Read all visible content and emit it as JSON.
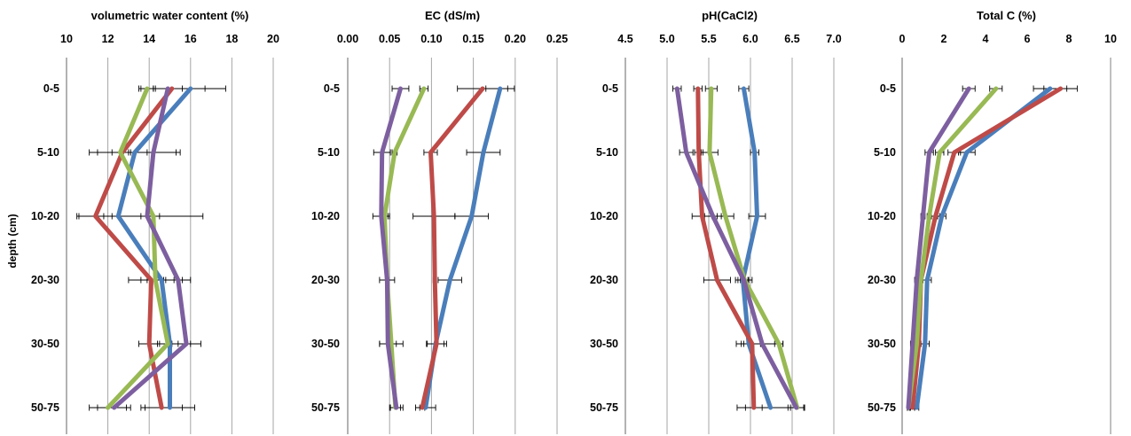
{
  "y_axis_label": "depth (cm)",
  "colors": {
    "series1": "#4a7ebb",
    "series2": "#be4b48",
    "series3": "#98b954",
    "series4": "#7d5fa0",
    "grid": "#a6a6a6",
    "errorbar": "#000000"
  },
  "chart_data": [
    {
      "type": "line",
      "title": "volumetric water content (%)",
      "xlim": [
        10,
        20
      ],
      "xticks": [
        "10",
        "12",
        "14",
        "16",
        "18",
        "20"
      ],
      "grid": true,
      "categories": [
        "0-5",
        "5-10",
        "10-20",
        "20-30",
        "30-50",
        "50-75"
      ],
      "series": [
        {
          "values": [
            16.0,
            13.3,
            12.5,
            14.6,
            15.0,
            15.0
          ],
          "err": [
            1.7,
            2.2,
            2.0,
            1.0,
            1.0,
            1.2
          ]
        },
        {
          "values": [
            15.1,
            12.7,
            11.4,
            14.1,
            14.0,
            14.6
          ],
          "err": [
            1.6,
            1.2,
            0.8,
            1.1,
            0.5,
            1.0
          ]
        },
        {
          "values": [
            13.9,
            12.6,
            14.2,
            14.3,
            14.9,
            12.0
          ],
          "err": [
            0.3,
            0.4,
            2.4,
            0.4,
            0.5,
            0.9
          ]
        },
        {
          "values": [
            14.9,
            14.2,
            13.9,
            15.4,
            15.8,
            12.3
          ],
          "err": [
            0.7,
            1.1,
            0.3,
            0.6,
            0.7,
            0.8
          ]
        }
      ]
    },
    {
      "type": "line",
      "title": "EC (dS/m)",
      "xlim": [
        0,
        0.25
      ],
      "xticks": [
        "0.00",
        "0.05",
        "0.10",
        "0.15",
        "0.20",
        "0.25"
      ],
      "grid": true,
      "categories": [
        "0-5",
        "5-10",
        "10-20",
        "20-30",
        "30-50",
        "50-75"
      ],
      "series": [
        {
          "values": [
            0.182,
            0.162,
            0.148,
            0.122,
            0.105,
            0.093
          ],
          "err": [
            0.017,
            0.02,
            0.02,
            0.014,
            0.01,
            0.012
          ]
        },
        {
          "values": [
            0.161,
            0.099,
            0.103,
            0.104,
            0.106,
            0.089
          ],
          "err": [
            0.03,
            0.008,
            0.025,
            0.002,
            0.012,
            0.003
          ]
        },
        {
          "values": [
            0.091,
            0.056,
            0.044,
            0.047,
            0.052,
            0.057
          ],
          "err": [
            0.005,
            0.003,
            0.004,
            0.002,
            0.014,
            0.006
          ]
        },
        {
          "values": [
            0.063,
            0.041,
            0.04,
            0.047,
            0.048,
            0.058
          ],
          "err": [
            0.01,
            0.01,
            0.01,
            0.009,
            0.01,
            0.008
          ]
        }
      ]
    },
    {
      "type": "line",
      "title": "pH(CaCl2)",
      "xlim": [
        4.5,
        7.0
      ],
      "xticks": [
        "4.5",
        "5.0",
        "5.5",
        "6.0",
        "6.5",
        "7.0"
      ],
      "grid": true,
      "categories": [
        "0-5",
        "5-10",
        "10-20",
        "20-30",
        "30-50",
        "50-75"
      ],
      "series": [
        {
          "values": [
            5.92,
            6.05,
            6.08,
            5.91,
            5.98,
            6.24
          ],
          "err": [
            0.06,
            0.05,
            0.1,
            0.06,
            0.15,
            0.4
          ]
        },
        {
          "values": [
            5.37,
            5.38,
            5.42,
            5.6,
            6.02,
            6.04
          ],
          "err": [
            0.05,
            0.05,
            0.12,
            0.16,
            0.1,
            0.1
          ]
        },
        {
          "values": [
            5.53,
            5.51,
            5.7,
            5.93,
            6.34,
            6.56
          ],
          "err": [
            0.07,
            0.1,
            0.1,
            0.05,
            0.05,
            0.08
          ]
        },
        {
          "values": [
            5.12,
            5.23,
            5.55,
            5.92,
            6.14,
            6.55
          ],
          "err": [
            0.05,
            0.08,
            0.1,
            0.1,
            0.25,
            0.1
          ]
        }
      ]
    },
    {
      "type": "line",
      "title": "Total C (%)",
      "xlim": [
        0,
        10
      ],
      "xticks": [
        "0",
        "2",
        "4",
        "6",
        "8",
        "10"
      ],
      "grid": false,
      "categories": [
        "0-5",
        "5-10",
        "10-20",
        "20-30",
        "30-50",
        "50-75"
      ],
      "series": [
        {
          "values": [
            7.1,
            3.1,
            1.9,
            1.2,
            1.1,
            0.7
          ],
          "err": [
            0.8,
            0.4,
            0.2,
            0.2,
            0.2,
            0.1
          ]
        },
        {
          "values": [
            7.6,
            2.5,
            1.6,
            0.9,
            0.8,
            0.5
          ],
          "err": [
            0.8,
            0.3,
            0.2,
            0.1,
            0.1,
            0.1
          ]
        },
        {
          "values": [
            4.5,
            1.8,
            1.3,
            0.9,
            0.7,
            0.3
          ],
          "err": [
            0.3,
            0.2,
            0.1,
            0.1,
            0.1,
            0.05
          ]
        },
        {
          "values": [
            3.2,
            1.3,
            1.0,
            0.7,
            0.5,
            0.3
          ],
          "err": [
            0.3,
            0.2,
            0.1,
            0.1,
            0.1,
            0.05
          ]
        }
      ]
    }
  ]
}
